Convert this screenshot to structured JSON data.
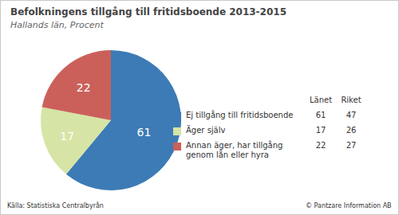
{
  "chart_data": {
    "type": "pie",
    "title": "Befolkningens tillgång till fritidsboende 2013-2015",
    "subtitle": "Hallands län, Procent",
    "categories": [
      "Ej tillgång till fritidsboende",
      "Äger själv",
      "Annan äger, har tillgång genom lån eller hyra"
    ],
    "series": [
      {
        "name": "Länet",
        "values": [
          61,
          17,
          22
        ]
      },
      {
        "name": "Riket",
        "values": [
          47,
          26,
          27
        ]
      }
    ],
    "colors": [
      "#3d7bb6",
      "#d6e4a6",
      "#cb605b"
    ],
    "data_labels": true,
    "legend": "right",
    "annotations": [
      "Källa: Statistiska Centralbyrån",
      "© Pantzare Information AB"
    ]
  }
}
